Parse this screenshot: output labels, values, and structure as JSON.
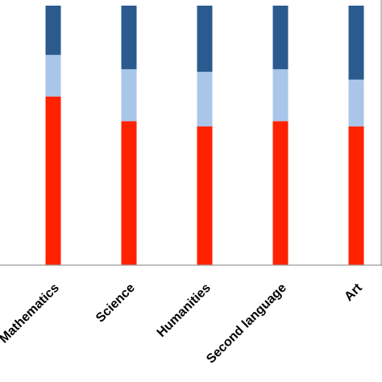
{
  "chart_data": {
    "type": "bar",
    "stacked": true,
    "normalized": true,
    "categories": [
      "Mathematics",
      "Science",
      "Humanities",
      "Second language",
      "Art"
    ],
    "series": [
      {
        "values": [
          0.65,
          0.555,
          0.535,
          0.555,
          0.535
        ]
      },
      {
        "values": [
          0.16,
          0.2,
          0.21,
          0.2,
          0.18
        ]
      },
      {
        "values": [
          0.19,
          0.245,
          0.255,
          0.245,
          0.285
        ]
      }
    ],
    "colors": [
      "#ff2200",
      "#a9c6ea",
      "#2b5a8f"
    ],
    "ylim": [
      0,
      1
    ],
    "grid": false,
    "legend": "none",
    "title": "",
    "xlabel": "",
    "ylabel": ""
  }
}
